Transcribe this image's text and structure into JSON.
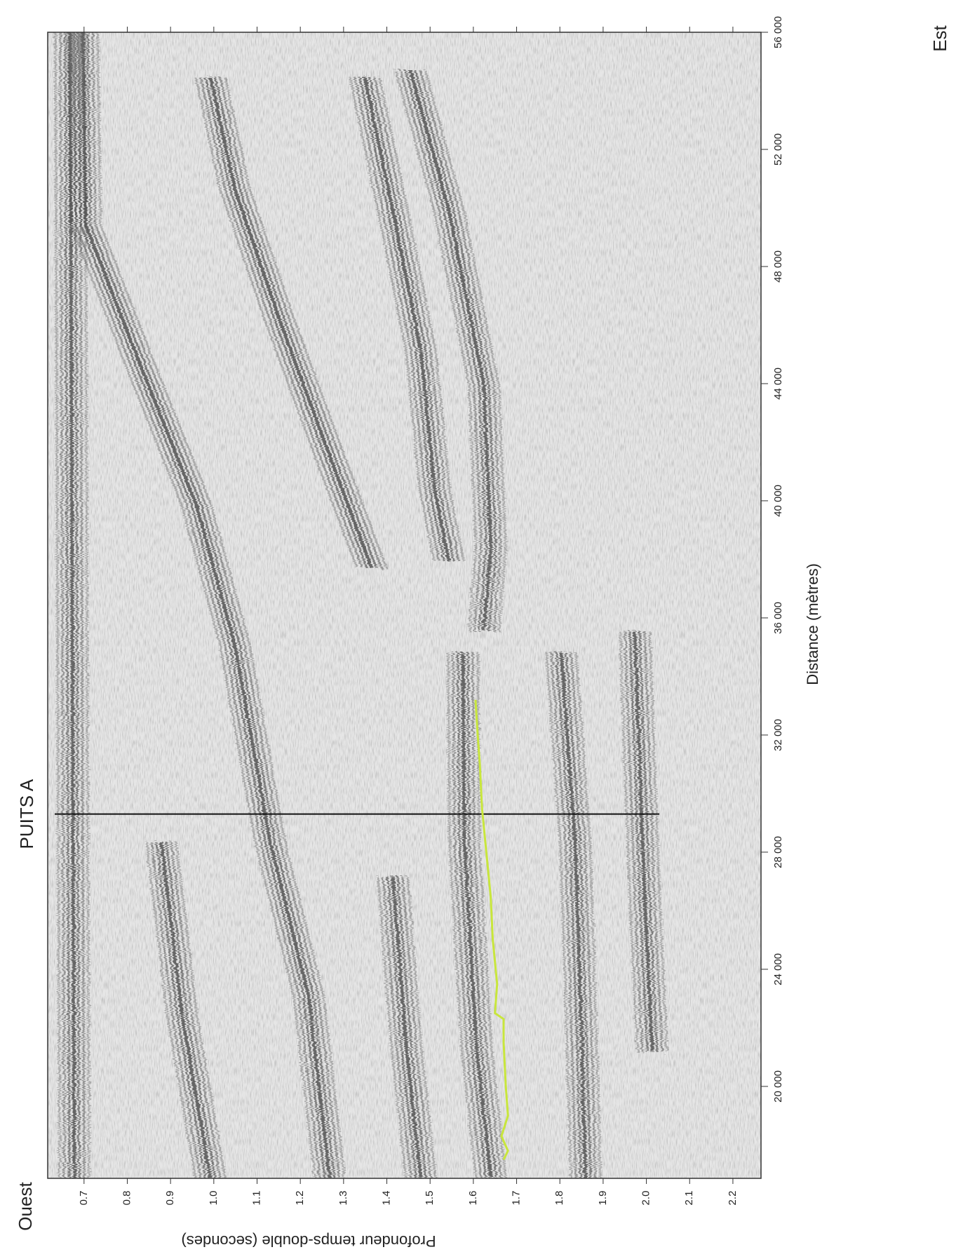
{
  "chart_data": {
    "type": "line",
    "xlabel": "Profondeur temps-double (secondes)",
    "ylabel": "Distance (mètres)",
    "annotations": {
      "west": "Ouest",
      "east": "Est"
    },
    "well": {
      "label": "PUITS A",
      "y": 29300,
      "x_end": 2.03
    },
    "xlim": [
      0.616,
      2.265
    ],
    "ylim": [
      16860,
      56000
    ],
    "xticks": [
      0.7,
      0.8,
      0.9,
      {
        "value": 1,
        "label": "1.0"
      },
      1.1,
      1.2,
      1.3,
      1.4,
      1.5,
      1.6,
      1.7,
      1.8,
      1.9,
      {
        "value": 2,
        "label": "2.0"
      },
      2.1,
      2.2
    ],
    "yticks": [
      {
        "value": 20000,
        "label": "20 000"
      },
      {
        "value": 24000,
        "label": "24 000"
      },
      {
        "value": 28000,
        "label": "28 000"
      },
      {
        "value": 32000,
        "label": "32 000"
      },
      {
        "value": 36000,
        "label": "36 000"
      },
      {
        "value": 40000,
        "label": "40 000"
      },
      {
        "value": 44000,
        "label": "44 000"
      },
      {
        "value": 48000,
        "label": "48 000"
      },
      {
        "value": 52000,
        "label": "52 000"
      },
      {
        "value": 56000,
        "label": "56 000"
      }
    ],
    "series": [
      {
        "color": "#c8e63c",
        "x": [
          1.67,
          1.68,
          1.665,
          1.68,
          1.675,
          1.67,
          1.67,
          1.65,
          1.655,
          1.645,
          1.64,
          1.63,
          1.62,
          1.615,
          1.61,
          1.605
        ],
        "y": [
          17500,
          17800,
          18300,
          19000,
          20000,
          21500,
          22300,
          22500,
          23500,
          25000,
          26500,
          28000,
          29500,
          31000,
          32000,
          33200
        ]
      }
    ]
  }
}
